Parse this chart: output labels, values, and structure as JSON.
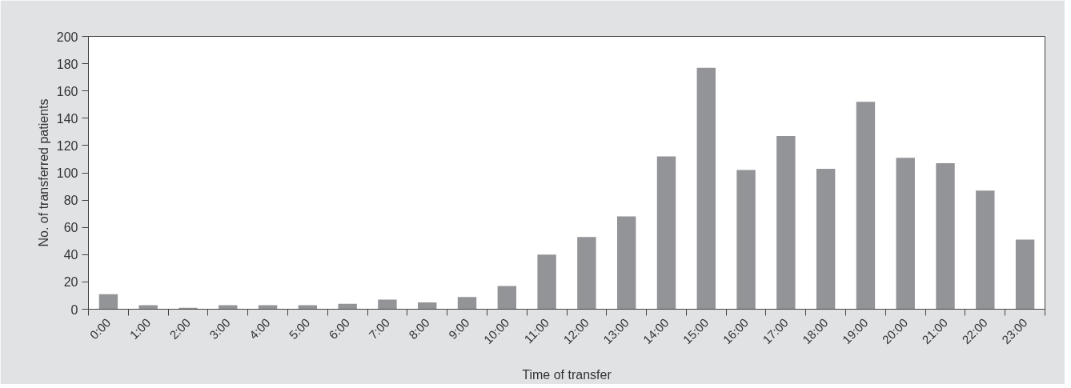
{
  "chart_data": {
    "type": "bar",
    "xlabel": "Time of transfer",
    "ylabel": "No. of transferred patients",
    "categories": [
      "0:00",
      "1:00",
      "2:00",
      "3:00",
      "4:00",
      "5:00",
      "6:00",
      "7:00",
      "8:00",
      "9:00",
      "10:00",
      "11:00",
      "12:00",
      "13:00",
      "14:00",
      "15:00",
      "16:00",
      "17:00",
      "18:00",
      "19:00",
      "20:00",
      "21:00",
      "22:00",
      "23:00"
    ],
    "values": [
      11,
      3,
      1,
      3,
      3,
      3,
      4,
      7,
      5,
      9,
      17,
      40,
      53,
      68,
      112,
      177,
      102,
      127,
      103,
      152,
      111,
      107,
      87,
      51
    ],
    "color": "#939497",
    "ylim": [
      0,
      200
    ],
    "yticks": [
      0,
      20,
      40,
      60,
      80,
      100,
      120,
      140,
      160,
      180,
      200
    ],
    "grid": false
  }
}
